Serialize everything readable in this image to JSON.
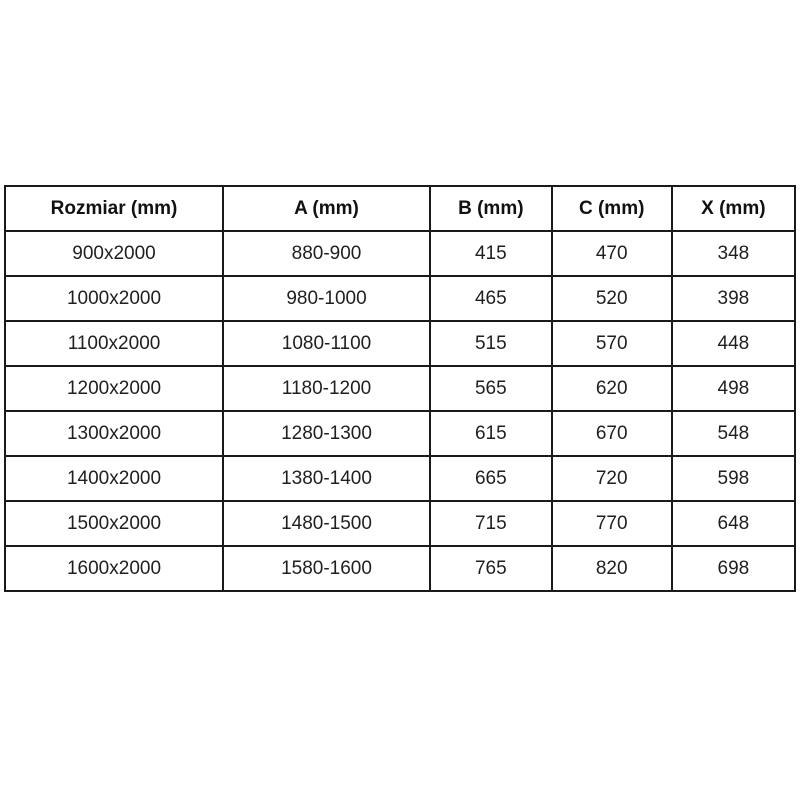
{
  "table": {
    "name": "shower-door-size-specifications",
    "unit": "mm",
    "columns": [
      "Rozmiar (mm)",
      "A (mm)",
      "B (mm)",
      "C (mm)",
      "X (mm)"
    ],
    "column_width_percents": [
      27.6,
      26.2,
      15.4,
      15.2,
      15.6
    ],
    "rows": [
      [
        "900x2000",
        "880-900",
        "415",
        "470",
        "348"
      ],
      [
        "1000x2000",
        "980-1000",
        "465",
        "520",
        "398"
      ],
      [
        "1100x2000",
        "1080-1100",
        "515",
        "570",
        "448"
      ],
      [
        "1200x2000",
        "1180-1200",
        "565",
        "620",
        "498"
      ],
      [
        "1300x2000",
        "1280-1300",
        "615",
        "670",
        "548"
      ],
      [
        "1400x2000",
        "1380-1400",
        "665",
        "720",
        "598"
      ],
      [
        "1500x2000",
        "1480-1500",
        "715",
        "770",
        "648"
      ],
      [
        "1600x2000",
        "1580-1600",
        "765",
        "820",
        "698"
      ]
    ],
    "colors": {
      "border": "#1a1a1a",
      "text": "#1f1f1f",
      "background": "#ffffff"
    }
  },
  "chart_data": {
    "type": "table",
    "title": "",
    "categories": [
      "Rozmiar (mm)",
      "A (mm)",
      "B (mm)",
      "C (mm)",
      "X (mm)"
    ],
    "values": [
      [
        "900x2000",
        "880-900",
        415,
        470,
        348
      ],
      [
        "1000x2000",
        "980-1000",
        465,
        520,
        398
      ],
      [
        "1100x2000",
        "1080-1100",
        515,
        570,
        448
      ],
      [
        "1200x2000",
        "1180-1200",
        565,
        620,
        498
      ],
      [
        "1300x2000",
        "1280-1300",
        615,
        670,
        548
      ],
      [
        "1400x2000",
        "1380-1400",
        665,
        720,
        598
      ],
      [
        "1500x2000",
        "1480-1500",
        715,
        770,
        648
      ],
      [
        "1600x2000",
        "1580-1600",
        765,
        820,
        698
      ]
    ]
  }
}
